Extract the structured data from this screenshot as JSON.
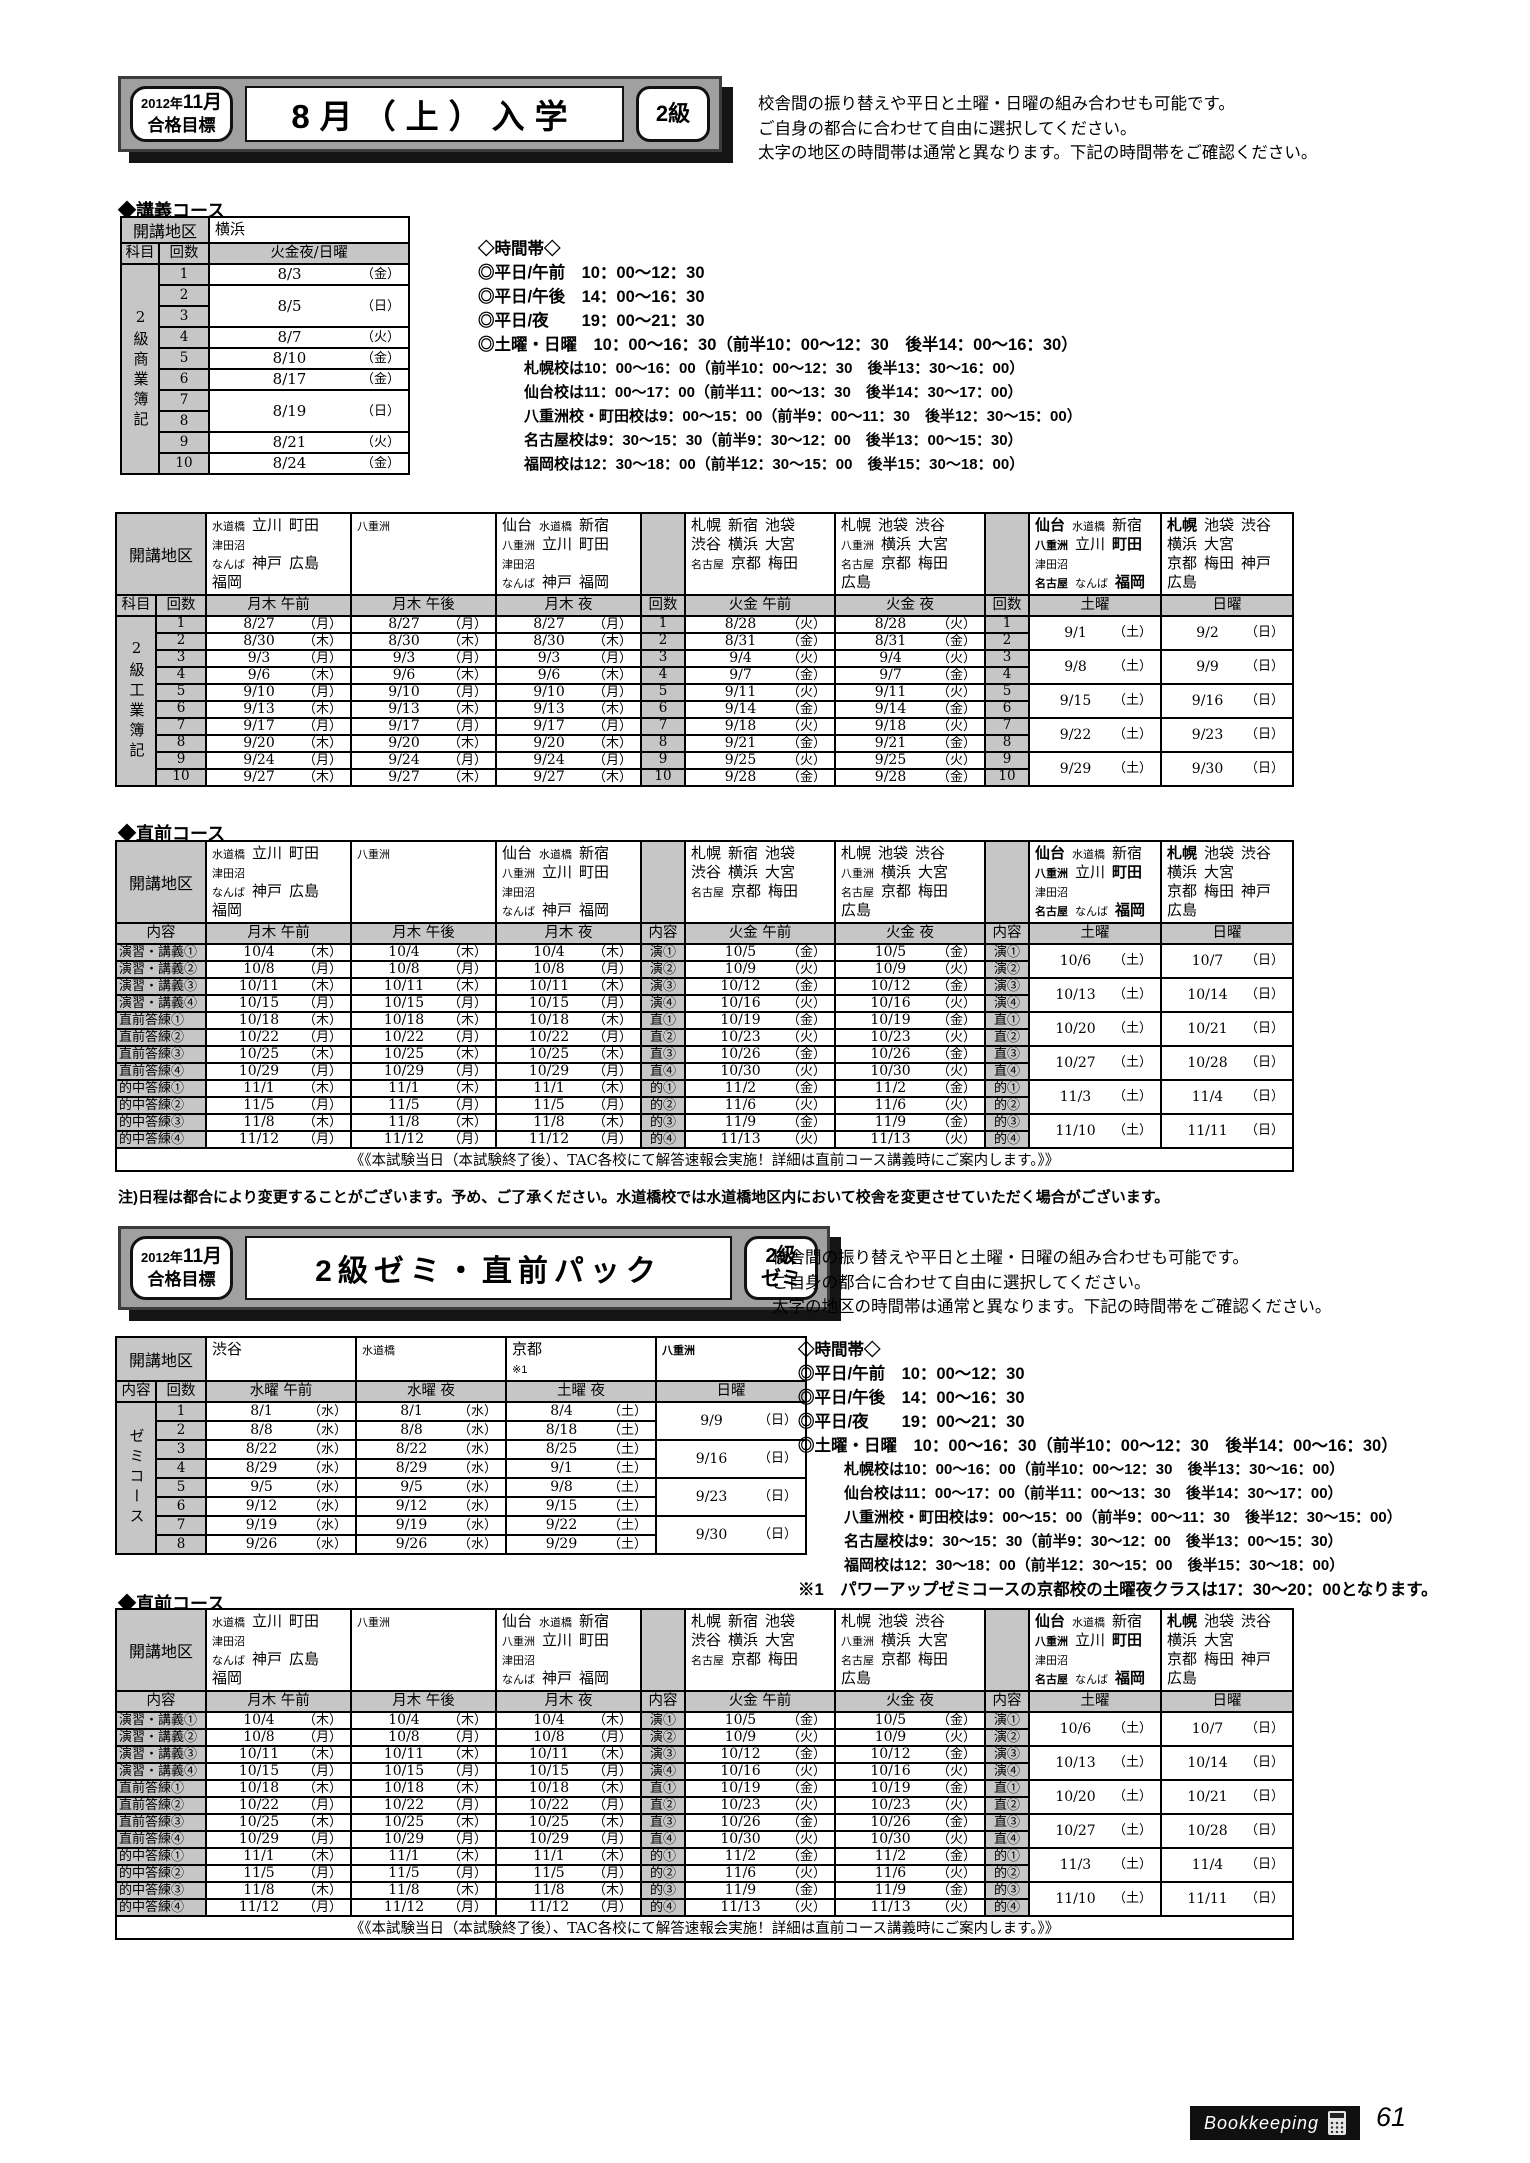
{
  "page": {
    "footer": {
      "brand": "Bookkeeping",
      "page_number": "61",
      "icon": "calculator-icon"
    }
  },
  "shared": {
    "usage_notes": [
      "校舎間の振り替えや平日と土曜・日曜の組み合わせも可能です。",
      "ご自身の都合に合わせて自由に選択してください。",
      "太字の地区の時間帯は通常と異なります。下記の時間帯をご確認ください。"
    ],
    "time_block": {
      "title": "◇時間帯◇",
      "main": [
        "◎平日/午前　10：00～12：30",
        "◎平日/午後　14：00～16：30",
        "◎平日/夜　　19：00～21：30",
        "◎土曜・日曜　10：00～16：30（前半10：00～12：30　後半14：00～16：30）"
      ],
      "sub": [
        "札幌校は10：00～16：00（前半10：00～12：30　後半13：30～16：00）",
        "仙台校は11：00～17：00（前半11：00～13：30　後半14：30～17：00）",
        "八重洲校・町田校は9：00～15：00（前半9：00～11：30　後半12：30～15：00）",
        "名古屋校は9：30～15：30（前半9：30～12：00　後半13：00～15：30）",
        "福岡校は12：30～18：00（前半12：30～15：00　後半15：30～18：00）"
      ],
      "zemi_note": "※1　パワーアップゼミコースの京都校の土曜夜クラスは17：30～20：00となります。"
    },
    "labels": {
      "area": "開講地区",
      "subject": "科目",
      "count": "回数",
      "content": "内容"
    },
    "areas": {
      "mon_thu_am": [
        [
          {
            "t": "水道橋",
            "s": true
          },
          {
            "t": "立川"
          },
          {
            "t": "町田"
          }
        ],
        [
          {
            "t": "津田沼",
            "s": true
          }
        ],
        [
          {
            "t": "なんば",
            "s": true
          },
          {
            "t": "神戸"
          },
          {
            "t": "広島"
          }
        ],
        [
          {
            "t": "福岡"
          }
        ]
      ],
      "mon_thu_pm": [
        [
          {
            "t": "八重洲",
            "s": true
          }
        ]
      ],
      "mon_thu_night": [
        [
          {
            "t": "仙台"
          },
          {
            "t": "水道橋",
            "s": true
          },
          {
            "t": "新宿"
          }
        ],
        [
          {
            "t": "八重洲",
            "s": true
          },
          {
            "t": "立川"
          },
          {
            "t": "町田"
          }
        ],
        [
          {
            "t": "津田沼",
            "s": true
          }
        ],
        [
          {
            "t": "なんば",
            "s": true
          },
          {
            "t": "神戸"
          },
          {
            "t": "福岡"
          }
        ]
      ],
      "tue_fri_am": [
        [
          {
            "t": "札幌"
          },
          {
            "t": "新宿"
          },
          {
            "t": "池袋"
          }
        ],
        [
          {
            "t": "渋谷"
          },
          {
            "t": "横浜"
          },
          {
            "t": "大宮"
          }
        ],
        [
          {
            "t": "名古屋",
            "s": true
          },
          {
            "t": "京都"
          },
          {
            "t": "梅田"
          }
        ]
      ],
      "tue_fri_night": [
        [
          {
            "t": "札幌"
          },
          {
            "t": "池袋"
          },
          {
            "t": "渋谷"
          }
        ],
        [
          {
            "t": "八重洲",
            "s": true
          },
          {
            "t": "横浜"
          },
          {
            "t": "大宮"
          }
        ],
        [
          {
            "t": "名古屋",
            "s": true
          },
          {
            "t": "京都"
          },
          {
            "t": "梅田"
          }
        ],
        [
          {
            "t": "広島"
          }
        ]
      ],
      "sat": [
        [
          {
            "t": "仙台",
            "b": true
          },
          {
            "t": "水道橋",
            "s": true
          },
          {
            "t": "新宿"
          }
        ],
        [
          {
            "t": "八重洲",
            "s": true,
            "b": true
          },
          {
            "t": "立川"
          },
          {
            "t": "町田",
            "b": true
          }
        ],
        [
          {
            "t": "津田沼",
            "s": true
          }
        ],
        [
          {
            "t": "名古屋",
            "s": true,
            "b": true
          },
          {
            "t": "なんば",
            "s": true
          },
          {
            "t": "福岡",
            "b": true
          }
        ]
      ],
      "sun": [
        [
          {
            "t": "札幌",
            "b": true
          },
          {
            "t": "池袋"
          },
          {
            "t": "渋谷"
          }
        ],
        [
          {
            "t": "横浜"
          },
          {
            "t": "大宮"
          }
        ],
        [
          {
            "t": "京都"
          },
          {
            "t": "梅田"
          },
          {
            "t": "神戸"
          }
        ],
        [
          {
            "t": "広島"
          }
        ]
      ]
    }
  },
  "section1": {
    "badge": {
      "goal_year": "2012年",
      "goal_month": "11月",
      "goal_label": "合格目標",
      "title": "8月（上）入学",
      "level": "2級"
    },
    "kogi": {
      "heading": "◆講義コース",
      "area": "横浜",
      "day_header": "火金夜/日曜",
      "subject": "2級商業簿記",
      "rows": [
        {
          "nos": [
            "1"
          ],
          "date": "8/3",
          "dow": "（金）"
        },
        {
          "nos": [
            "2",
            "3"
          ],
          "date": "8/5",
          "dow": "（日）"
        },
        {
          "nos": [
            "4"
          ],
          "date": "8/7",
          "dow": "（火）"
        },
        {
          "nos": [
            "5"
          ],
          "date": "8/10",
          "dow": "（金）"
        },
        {
          "nos": [
            "6"
          ],
          "date": "8/17",
          "dow": "（金）"
        },
        {
          "nos": [
            "7",
            "8"
          ],
          "date": "8/19",
          "dow": "（日）"
        },
        {
          "nos": [
            "9"
          ],
          "date": "8/21",
          "dow": "（火）"
        },
        {
          "nos": [
            "10"
          ],
          "date": "8/24",
          "dow": "（金）"
        }
      ]
    },
    "kogyo": {
      "subject": "2級工業簿記",
      "headers": {
        "mon_thu_am": "月木 午前",
        "mon_thu_pm": "月木 午後",
        "mon_thu_night": "月木 夜",
        "tue_fri_am": "火金 午前",
        "tue_fri_night": "火金 夜",
        "sat": "土曜",
        "sun": "日曜"
      },
      "dates": {
        "mon_thu": [
          [
            "8/27",
            "（月）"
          ],
          [
            "8/30",
            "（木）"
          ],
          [
            "9/3",
            "（月）"
          ],
          [
            "9/6",
            "（木）"
          ],
          [
            "9/10",
            "（月）"
          ],
          [
            "9/13",
            "（木）"
          ],
          [
            "9/17",
            "（月）"
          ],
          [
            "9/20",
            "（木）"
          ],
          [
            "9/24",
            "（月）"
          ],
          [
            "9/27",
            "（木）"
          ]
        ],
        "tue_fri": [
          [
            "8/28",
            "（火）"
          ],
          [
            "8/31",
            "（金）"
          ],
          [
            "9/4",
            "（火）"
          ],
          [
            "9/7",
            "（金）"
          ],
          [
            "9/11",
            "（火）"
          ],
          [
            "9/14",
            "（金）"
          ],
          [
            "9/18",
            "（火）"
          ],
          [
            "9/21",
            "（金）"
          ],
          [
            "9/25",
            "（火）"
          ],
          [
            "9/28",
            "（金）"
          ]
        ],
        "sat": [
          [
            "9/1",
            "（土）"
          ],
          [
            "9/8",
            "（土）"
          ],
          [
            "9/15",
            "（土）"
          ],
          [
            "9/22",
            "（土）"
          ],
          [
            "9/29",
            "（土）"
          ]
        ],
        "sun": [
          [
            "9/2",
            "（日）"
          ],
          [
            "9/9",
            "（日）"
          ],
          [
            "9/16",
            "（日）"
          ],
          [
            "9/23",
            "（日）"
          ],
          [
            "9/30",
            "（日）"
          ]
        ]
      }
    },
    "chokuzen_heading": "◆直前コース"
  },
  "chokuzen": {
    "row_labels": [
      "演習・講義①",
      "演習・講義②",
      "演習・講義③",
      "演習・講義④",
      "直前答練①",
      "直前答練②",
      "直前答練③",
      "直前答練④",
      "的中答練①",
      "的中答練②",
      "的中答練③",
      "的中答練④"
    ],
    "row_labels_short": [
      "演①",
      "演②",
      "演③",
      "演④",
      "直①",
      "直②",
      "直③",
      "直④",
      "的①",
      "的②",
      "的③",
      "的④"
    ],
    "headers": {
      "mon_thu_am": "月木 午前",
      "mon_thu_pm": "月木 午後",
      "mon_thu_night": "月木 夜",
      "tue_fri_am": "火金 午前",
      "tue_fri_night": "火金 夜",
      "sat": "土曜",
      "sun": "日曜"
    },
    "dates": {
      "mon_thu": [
        [
          "10/4",
          "（木）"
        ],
        [
          "10/8",
          "（月）"
        ],
        [
          "10/11",
          "（木）"
        ],
        [
          "10/15",
          "（月）"
        ],
        [
          "10/18",
          "（木）"
        ],
        [
          "10/22",
          "（月）"
        ],
        [
          "10/25",
          "（木）"
        ],
        [
          "10/29",
          "（月）"
        ],
        [
          "11/1",
          "（木）"
        ],
        [
          "11/5",
          "（月）"
        ],
        [
          "11/8",
          "（木）"
        ],
        [
          "11/12",
          "（月）"
        ]
      ],
      "tue_fri": [
        [
          "10/5",
          "（金）"
        ],
        [
          "10/9",
          "（火）"
        ],
        [
          "10/12",
          "（金）"
        ],
        [
          "10/16",
          "（火）"
        ],
        [
          "10/19",
          "（金）"
        ],
        [
          "10/23",
          "（火）"
        ],
        [
          "10/26",
          "（金）"
        ],
        [
          "10/30",
          "（火）"
        ],
        [
          "11/2",
          "（金）"
        ],
        [
          "11/6",
          "（火）"
        ],
        [
          "11/9",
          "（金）"
        ],
        [
          "11/13",
          "（火）"
        ]
      ],
      "sat": [
        [
          "10/6",
          "（土）"
        ],
        [
          "10/13",
          "（土）"
        ],
        [
          "10/20",
          "（土）"
        ],
        [
          "10/27",
          "（土）"
        ],
        [
          "11/3",
          "（土）"
        ],
        [
          "11/10",
          "（土）"
        ]
      ],
      "sun": [
        [
          "10/7",
          "（日）"
        ],
        [
          "10/14",
          "（日）"
        ],
        [
          "10/21",
          "（日）"
        ],
        [
          "10/28",
          "（日）"
        ],
        [
          "11/4",
          "（日）"
        ],
        [
          "11/11",
          "（日）"
        ]
      ]
    },
    "note": "《《本試験当日（本試験終了後）、TAC各校にて解答速報会実施！詳細は直前コース講義時にご案内します。》》",
    "caution": "注)日程は都合により変更することがございます。予め、ご了承ください。水道橋校では水道橋地区内において校舎を変更させていただく場合がございます。"
  },
  "section2": {
    "badge": {
      "goal_year": "2012年",
      "goal_month": "11月",
      "goal_label": "合格目標",
      "title": "2級ゼミ・直前パック",
      "level_line1": "2級",
      "level_line2": "ゼミ"
    },
    "zemi": {
      "subject": "ゼミコース",
      "areas": [
        [
          [
            {
              "t": "渋谷"
            }
          ]
        ],
        [
          [
            {
              "t": "水道橋",
              "s": true
            }
          ]
        ],
        [
          [
            {
              "t": "京都"
            }
          ],
          [
            {
              "t": "※1",
              "s": true
            }
          ]
        ],
        [
          [
            {
              "t": "八重洲",
              "s": true,
              "b": true
            }
          ]
        ]
      ],
      "headers": [
        "水曜 午前",
        "水曜 夜",
        "土曜 夜",
        "日曜"
      ],
      "dates": {
        "wed": [
          [
            "8/1",
            "（水）"
          ],
          [
            "8/8",
            "（水）"
          ],
          [
            "8/22",
            "（水）"
          ],
          [
            "8/29",
            "（水）"
          ],
          [
            "9/5",
            "（水）"
          ],
          [
            "9/12",
            "（水）"
          ],
          [
            "9/19",
            "（水）"
          ],
          [
            "9/26",
            "（水）"
          ]
        ],
        "sat_night": [
          [
            "8/4",
            "（土）"
          ],
          [
            "8/18",
            "（土）"
          ],
          [
            "8/25",
            "（土）"
          ],
          [
            "9/1",
            "（土）"
          ],
          [
            "9/8",
            "（土）"
          ],
          [
            "9/15",
            "（土）"
          ],
          [
            "9/22",
            "（土）"
          ],
          [
            "9/29",
            "（土）"
          ]
        ],
        "sun": [
          [
            "9/9",
            "（日）"
          ],
          [
            "9/16",
            "（日）"
          ],
          [
            "9/23",
            "（日）"
          ],
          [
            "9/30",
            "（日）"
          ]
        ]
      }
    },
    "chokuzen_heading": "◆直前コース"
  }
}
